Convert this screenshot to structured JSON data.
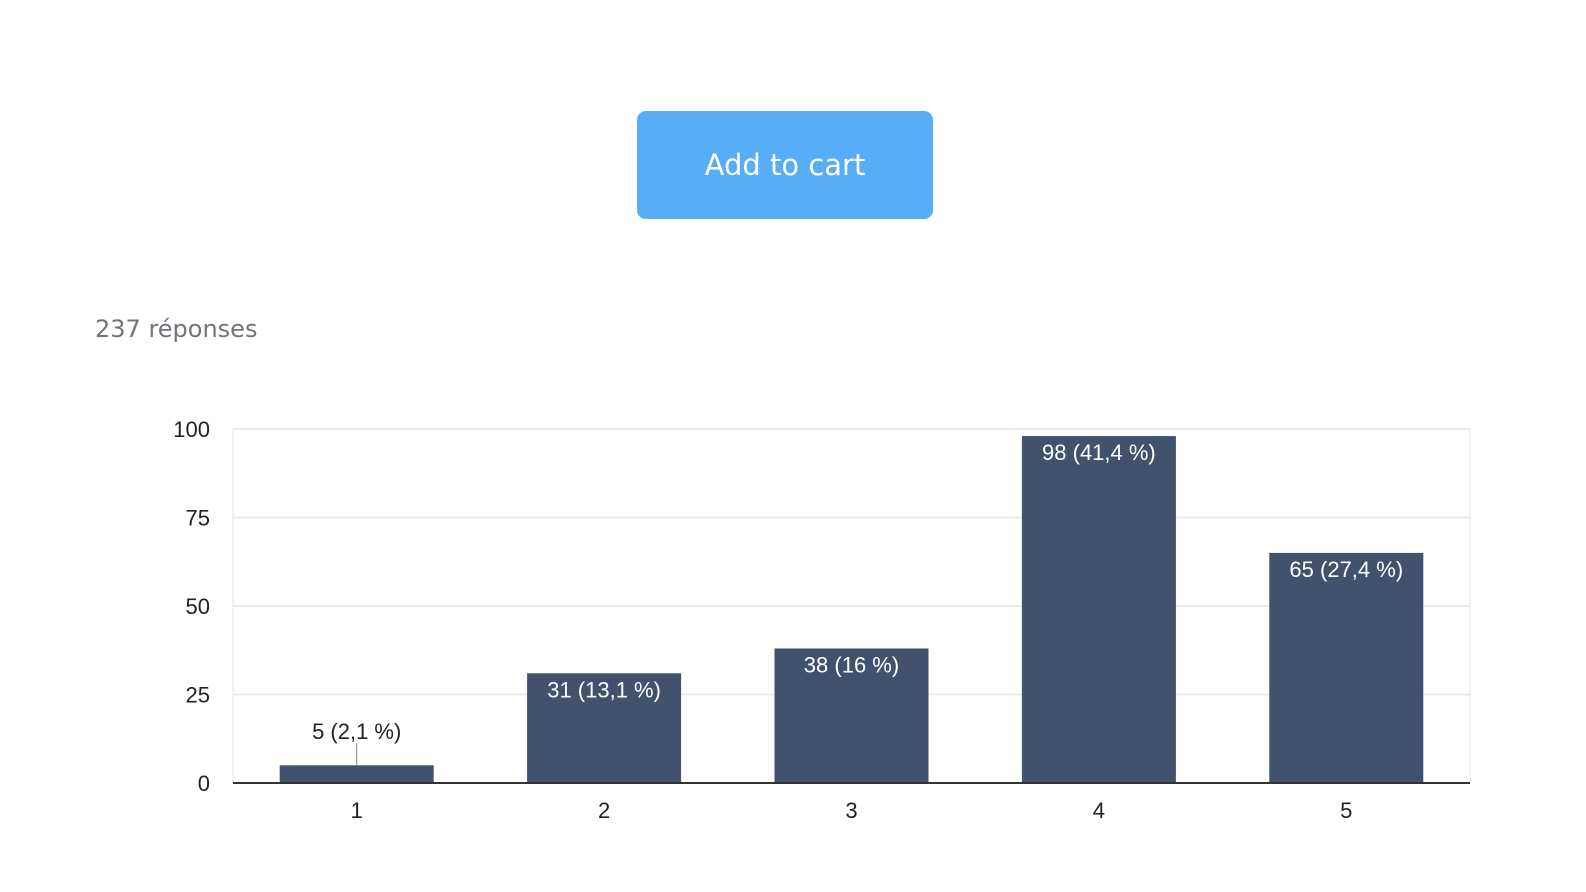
{
  "cart_button": {
    "label": "Add to cart",
    "color": "#57adf8"
  },
  "responses_label": "237 réponses",
  "chart_data": {
    "type": "bar",
    "categories": [
      "1",
      "2",
      "3",
      "4",
      "5"
    ],
    "values": [
      5,
      31,
      38,
      98,
      65
    ],
    "data_labels": [
      "5 (2,1 %)",
      "31 (13,1 %)",
      "38 (16 %)",
      "98 (41,4 %)",
      "65 (27,4 %)"
    ],
    "yticks": [
      "0",
      "25",
      "50",
      "75",
      "100"
    ],
    "ylim": [
      0,
      100
    ],
    "grid": true,
    "bar_color": "#42526e",
    "xlabel": "",
    "ylabel": "",
    "title": ""
  }
}
